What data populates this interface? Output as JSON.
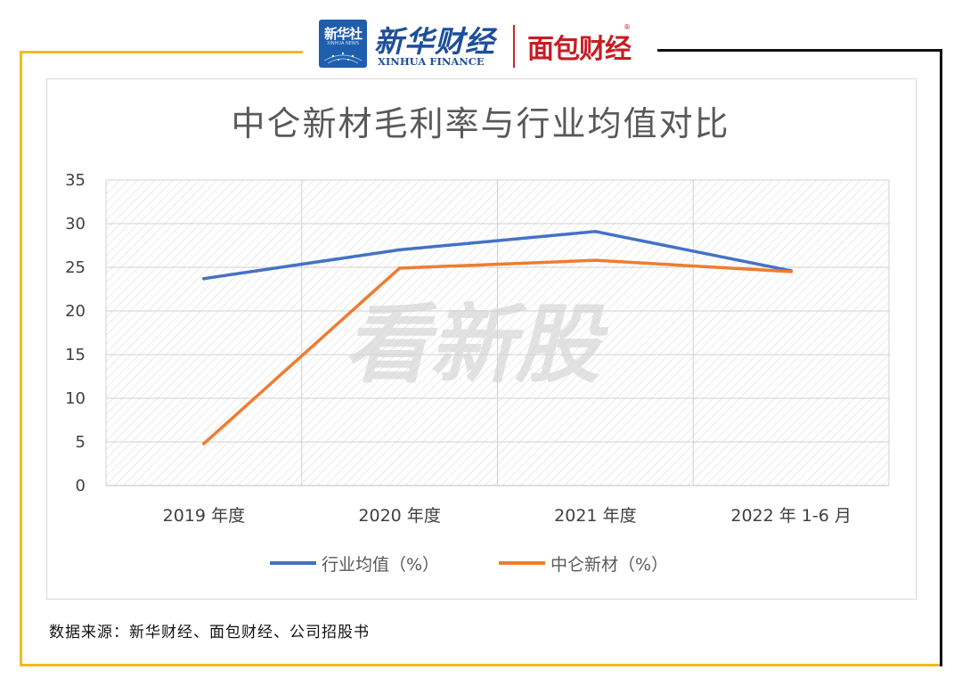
{
  "header": {
    "xinhua_badge": "新华社",
    "xinhua_badge_en": "XINHUA NEWS",
    "xinhua_finance": "新华财经",
    "xinhua_finance_en": "XINHUA FINANCE",
    "mianbao": "面包财经",
    "registered_mark": "®"
  },
  "colors": {
    "frame_accent": "#f1bc1d",
    "frame_dark": "#111111",
    "industry": "#4472c4",
    "company": "#ed7d31"
  },
  "watermark": "看新股",
  "source_note": "数据来源：新华财经、面包财经、公司招股书",
  "chart_data": {
    "type": "line",
    "title": "中仑新材毛利率与行业均值对比",
    "categories": [
      "2019 年度",
      "2020 年度",
      "2021 年度",
      "2022 年 1-6 月"
    ],
    "series": [
      {
        "name": "行业均值（%）",
        "color": "#4472c4",
        "values": [
          23.7,
          27.0,
          29.1,
          24.6
        ]
      },
      {
        "name": "中仑新材（%）",
        "color": "#ed7d31",
        "values": [
          4.8,
          24.9,
          25.8,
          24.5
        ]
      }
    ],
    "ylim": [
      0,
      35
    ],
    "yticks": [
      0,
      5,
      10,
      15,
      20,
      25,
      30,
      35
    ],
    "grid": true,
    "legend": "bottom"
  }
}
